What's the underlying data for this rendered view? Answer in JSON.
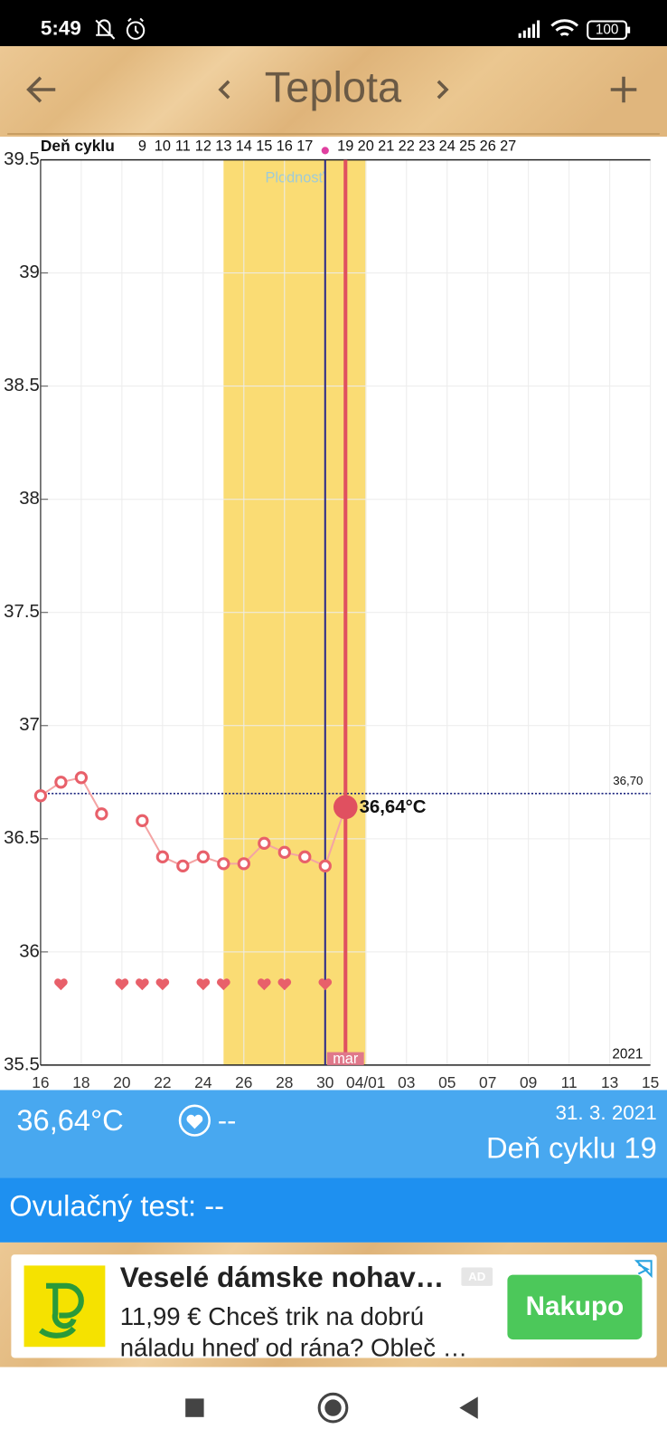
{
  "status_bar": {
    "time": "5:49",
    "battery": "100"
  },
  "toolbar": {
    "title": "Teplota"
  },
  "chart_data": {
    "type": "line",
    "x_header": "Deň cyklu",
    "categories": [
      "16",
      null,
      "18",
      null,
      "20",
      null,
      "22",
      null,
      "24",
      null,
      "26",
      null,
      "28",
      null,
      "30",
      null,
      "04/01",
      null,
      "03",
      null,
      "05",
      null,
      "07",
      null,
      "09",
      null,
      "11",
      null,
      "13",
      null,
      "15"
    ],
    "cycle_days": [
      null,
      null,
      null,
      null,
      null,
      9,
      10,
      11,
      12,
      13,
      14,
      15,
      16,
      17,
      null,
      19,
      20,
      21,
      22,
      23,
      24,
      25,
      26,
      27,
      null,
      null,
      null,
      null,
      null,
      null,
      null
    ],
    "series": [
      {
        "color": "#e8606a",
        "line_color": "#f4a4a4",
        "values": [
          36.69,
          36.75,
          36.77,
          36.61,
          null,
          36.58,
          36.42,
          36.38,
          36.42,
          36.39,
          36.39,
          36.48,
          36.44,
          36.42,
          36.38,
          36.64,
          null,
          null,
          null,
          null,
          null,
          null,
          null,
          null,
          null,
          null,
          null,
          null,
          null,
          null,
          null
        ],
        "value_labels": [
          null,
          null,
          null,
          null,
          null,
          null,
          null,
          null,
          null,
          null,
          null,
          null,
          null,
          null,
          null,
          "36,64°C",
          null,
          null,
          null,
          null,
          null,
          null,
          null,
          null,
          null,
          null,
          null,
          null,
          null,
          null,
          null
        ]
      }
    ],
    "hearts": [
      false,
      true,
      false,
      false,
      true,
      true,
      true,
      false,
      true,
      true,
      false,
      true,
      true,
      false,
      true,
      false,
      false,
      false,
      false,
      false,
      false,
      false,
      false,
      false,
      false,
      false,
      false,
      false,
      false,
      false,
      false
    ],
    "fertile": [
      false,
      false,
      false,
      false,
      false,
      false,
      false,
      false,
      false,
      true,
      true,
      true,
      true,
      true,
      true,
      true,
      false,
      false,
      false,
      false,
      false,
      false,
      false,
      false,
      false,
      false,
      false,
      false,
      false,
      false,
      false
    ],
    "fertile_label": "Plodnosť",
    "fertile_color": "#fadc74",
    "ovulation_day": "30",
    "reference_line": {
      "value": 36.7,
      "label": "36,70"
    },
    "year_label": "2021",
    "month_label": "mar",
    "ylim": [
      35.5,
      39.5
    ],
    "yticks": [
      35.5,
      36,
      36.5,
      37,
      37.5,
      38,
      38.5,
      39,
      39.5
    ],
    "grid": true
  },
  "summary": {
    "temperature": "36,64°C",
    "intercourse": "--",
    "date": "31. 3. 2021",
    "cycle_day": "Deň cyklu 19"
  },
  "ovulation_test": "Ovulačný test: --",
  "ad": {
    "headline": "Veselé dámske nohav…",
    "badge": "AD",
    "body_lines": [
      "11,99 € Chceš trik na dobrú",
      "náladu hneď od rána? Obleč …"
    ],
    "button": "Nakupo"
  }
}
